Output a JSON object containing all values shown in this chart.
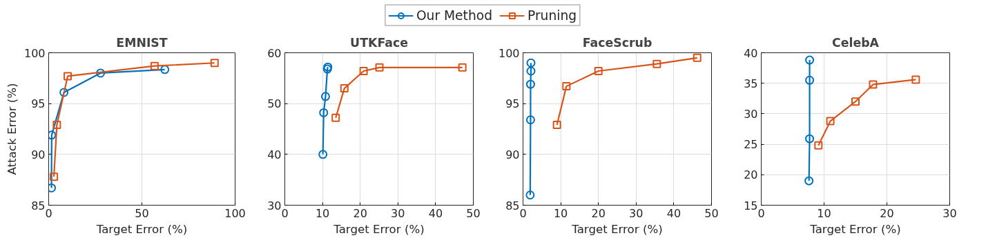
{
  "chart_data": [
    {
      "type": "line",
      "title": "EMNIST",
      "xlabel": "Target Error (%)",
      "ylabel": "Attack Error (%)",
      "xlim": [
        0,
        100
      ],
      "xticks": [
        0,
        50,
        100
      ],
      "ylim": [
        85,
        100
      ],
      "yticks": [
        85,
        90,
        95,
        100
      ],
      "grid": true,
      "legend": "top",
      "series": [
        {
          "name": "Our Method",
          "color": "#0072bd",
          "marker": "circle",
          "x": [
            1.5,
            1.6,
            8.2,
            27.8,
            62.3
          ],
          "values": [
            86.7,
            91.9,
            96.1,
            98.0,
            98.35
          ]
        },
        {
          "name": "Pruning",
          "color": "#d95319",
          "marker": "square",
          "x": [
            2.8,
            4.4,
            10.2,
            56.8,
            89.0
          ],
          "values": [
            87.8,
            92.9,
            97.7,
            98.7,
            99.0
          ]
        }
      ]
    },
    {
      "type": "line",
      "title": "UTKFace",
      "xlabel": "Target Error (%)",
      "xlim": [
        0,
        50
      ],
      "xticks": [
        0,
        10,
        20,
        30,
        40,
        50
      ],
      "ylim": [
        30,
        60
      ],
      "yticks": [
        30,
        40,
        50,
        60
      ],
      "grid": true,
      "series": [
        {
          "color": "#0072bd",
          "marker": "circle",
          "x": [
            10.1,
            10.3,
            10.8,
            11.3,
            11.4
          ],
          "values": [
            40.0,
            48.2,
            51.4,
            56.8,
            57.2
          ]
        },
        {
          "color": "#d95319",
          "marker": "square",
          "x": [
            13.5,
            15.8,
            20.9,
            25.1,
            47.1
          ],
          "values": [
            47.2,
            53.0,
            56.4,
            57.1,
            57.1
          ]
        }
      ]
    },
    {
      "type": "line",
      "title": "FaceScrub",
      "xlabel": "Target Error (%)",
      "xlim": [
        0,
        50
      ],
      "xticks": [
        0,
        10,
        20,
        30,
        40,
        50
      ],
      "ylim": [
        85,
        100
      ],
      "yticks": [
        85,
        90,
        95,
        100
      ],
      "grid": true,
      "series": [
        {
          "color": "#0072bd",
          "marker": "circle",
          "x": [
            1.9,
            2.0,
            2.0,
            2.1,
            2.1
          ],
          "values": [
            86.0,
            93.4,
            96.9,
            98.2,
            99.0
          ]
        },
        {
          "color": "#d95319",
          "marker": "square",
          "x": [
            9.0,
            11.5,
            20.0,
            35.5,
            46.2
          ],
          "values": [
            92.9,
            96.7,
            98.2,
            98.9,
            99.5
          ]
        }
      ]
    },
    {
      "type": "line",
      "title": "CelebA",
      "xlabel": "Target Error (%)",
      "xlim": [
        0,
        30
      ],
      "xticks": [
        0,
        10,
        20,
        30
      ],
      "ylim": [
        15,
        40
      ],
      "yticks": [
        15,
        20,
        25,
        30,
        35,
        40
      ],
      "grid": true,
      "series": [
        {
          "color": "#0072bd",
          "marker": "circle",
          "x": [
            7.6,
            7.7,
            7.7,
            7.7
          ],
          "values": [
            19.0,
            25.9,
            35.5,
            38.8
          ]
        },
        {
          "color": "#d95319",
          "marker": "square",
          "x": [
            9.1,
            11.0,
            15.0,
            17.8,
            24.6
          ],
          "values": [
            24.8,
            28.8,
            32.0,
            34.8,
            35.6
          ]
        }
      ]
    }
  ]
}
